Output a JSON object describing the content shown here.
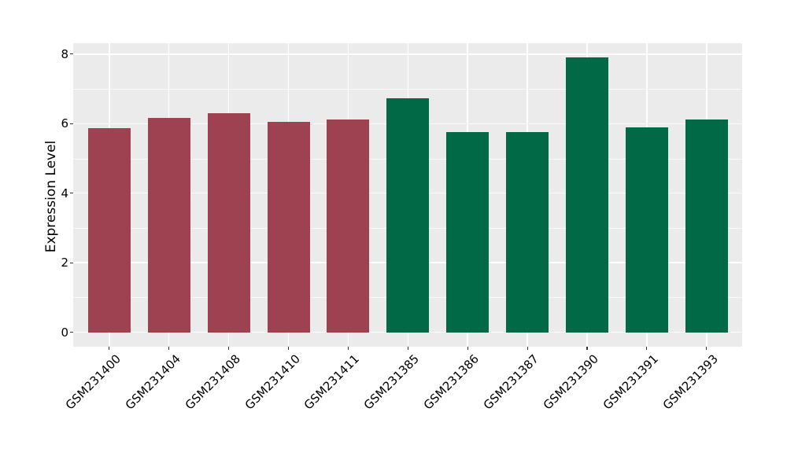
{
  "figure": {
    "background": "#FFFFFF"
  },
  "chart_data": {
    "type": "bar",
    "title": "",
    "xlabel": "",
    "ylabel": "Expression Level",
    "categories": [
      "GSM231400",
      "GSM231404",
      "GSM231408",
      "GSM231410",
      "GSM231411",
      "GSM231385",
      "GSM231386",
      "GSM231387",
      "GSM231390",
      "GSM231391",
      "GSM231393"
    ],
    "values": [
      5.87,
      6.17,
      6.3,
      6.05,
      6.13,
      6.72,
      5.76,
      5.76,
      7.9,
      5.89,
      6.12
    ],
    "bar_colors": [
      "#9E4252",
      "#9E4252",
      "#9E4252",
      "#9E4252",
      "#9E4252",
      "#016946",
      "#016946",
      "#016946",
      "#016946",
      "#016946",
      "#016946"
    ],
    "ylim": [
      0,
      8.3
    ],
    "yticks_major": [
      0,
      2,
      4,
      6,
      8
    ],
    "yticks_minor": [
      1,
      3,
      5,
      7
    ],
    "grid": "horizontal major+minor, vertical major at category centers",
    "legend": "none",
    "panel_background": "#EBEBEB",
    "gridline_color": "#FFFFFF",
    "tick_mark_color": "#333333",
    "text_color": "#000000",
    "x_tick_rotation_deg": 45
  }
}
